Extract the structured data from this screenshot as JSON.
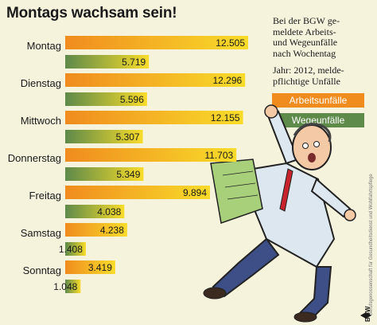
{
  "header": {
    "title": "Montags wachsam sein!",
    "description_lines": [
      "Bei der BGW ge-",
      "meldete Arbeits-",
      "und Wegeunfälle",
      "nach Wochentag"
    ],
    "note_lines": [
      "Jahr: 2012, melde-",
      "pflichtige Unfälle"
    ]
  },
  "legend": {
    "arbeitsunfaelle": "Arbeitsunfälle",
    "wegeunfaelle": "Wegeunfälle"
  },
  "footer": {
    "source": "Berufsgenossenschaft für Gesundheitsdienst und Wohlfahrtspflege",
    "logo_text": "BGW"
  },
  "colors": {
    "arbeitsunfaelle": "#f08c1e",
    "wegeunfaelle": "#5e8a4a",
    "bar_gradient_light": "#f8dc2a",
    "background": "#f6f3dc"
  },
  "chart_data": {
    "type": "bar",
    "orientation": "horizontal",
    "title": "Montags wachsam sein!",
    "categories": [
      "Montag",
      "Dienstag",
      "Mittwoch",
      "Donnerstag",
      "Freitag",
      "Samstag",
      "Sonntag"
    ],
    "series": [
      {
        "name": "Arbeitsunfälle",
        "values": [
          12505,
          12296,
          12155,
          11703,
          9894,
          4238,
          3419
        ],
        "labels": [
          "12.505",
          "12.296",
          "12.155",
          "11.703",
          "9.894",
          "4.238",
          "3.419"
        ]
      },
      {
        "name": "Wegeunfälle",
        "values": [
          5719,
          5596,
          5307,
          5349,
          4038,
          1408,
          1048
        ],
        "labels": [
          "5.719",
          "5.596",
          "5.307",
          "5.349",
          "4.038",
          "1.408",
          "1.048"
        ]
      }
    ],
    "xlabel": "",
    "ylabel": "",
    "grid": false,
    "legend": "right"
  }
}
